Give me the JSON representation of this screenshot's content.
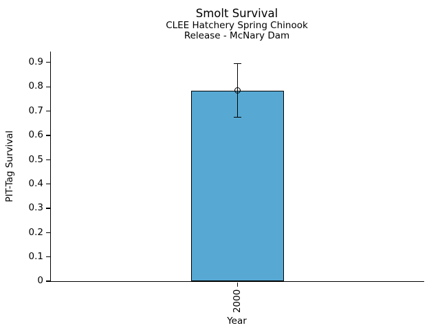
{
  "figure": {
    "title": "Smolt Survival",
    "subtitle_line1": "CLEE Hatchery Spring Chinook",
    "subtitle_line2": "Release - McNary Dam"
  },
  "chart_data": {
    "type": "bar",
    "title": "Smolt Survival",
    "subtitle": [
      "CLEE Hatchery Spring Chinook",
      "Release - McNary Dam"
    ],
    "categories": [
      "2000"
    ],
    "values": [
      0.785
    ],
    "error_low": [
      0.675
    ],
    "error_high": [
      0.895
    ],
    "marker": "open-circle",
    "xlabel": "Year",
    "ylabel": "PIT-Tag Survival",
    "ylim": [
      0,
      0.945
    ],
    "yticks": [
      0,
      0.1,
      0.2,
      0.3,
      0.4,
      0.5,
      0.6,
      0.7,
      0.8,
      0.9
    ],
    "ytick_labels": [
      "0",
      "0.1",
      "0.2",
      "0.3",
      "0.4",
      "0.5",
      "0.6",
      "0.7",
      "0.8",
      "0.9"
    ],
    "grid": false,
    "legend_position": "none",
    "bar_color": "#57a9d4",
    "bar_edge_color": "#000000",
    "error_color": "#000000"
  }
}
